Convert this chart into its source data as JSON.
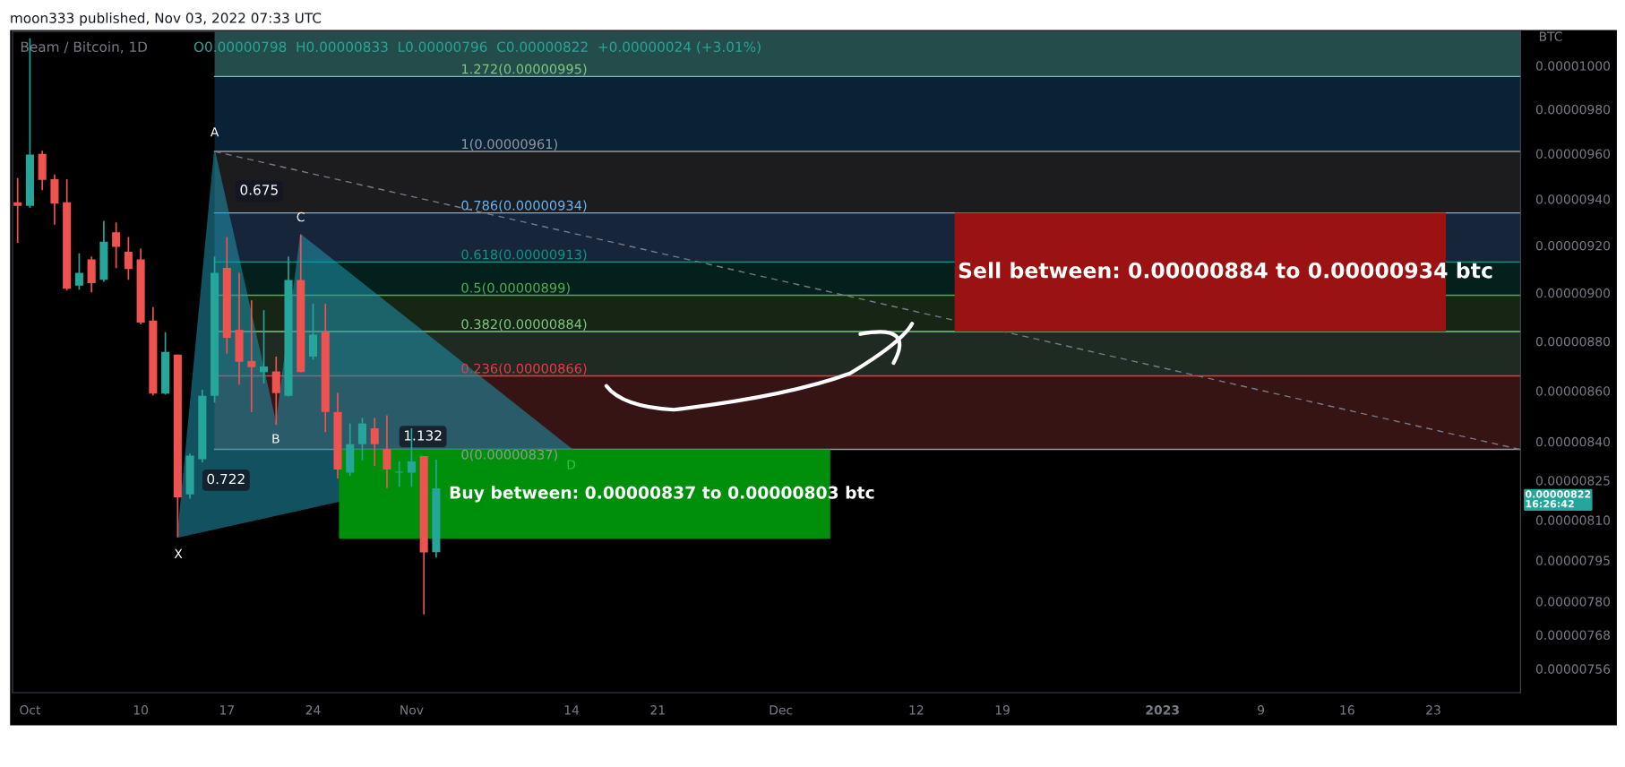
{
  "chart_data": {
    "type": "candlestick",
    "title": "Beam / Bitcoin, 1D",
    "subtitle": "O0.00000798  H0.00000833  L0.00000796  C0.00000822  +0.00000024 (+3.01%)",
    "ylabel": "BTC",
    "x": [
      "2022-09-30",
      "2022-10-01",
      "2022-10-02",
      "2022-10-03",
      "2022-10-04",
      "2022-10-05",
      "2022-10-06",
      "2022-10-07",
      "2022-10-08",
      "2022-10-09",
      "2022-10-10",
      "2022-10-11",
      "2022-10-12",
      "2022-10-13",
      "2022-10-14",
      "2022-10-15",
      "2022-10-16",
      "2022-10-17",
      "2022-10-18",
      "2022-10-19",
      "2022-10-20",
      "2022-10-21",
      "2022-10-22",
      "2022-10-23",
      "2022-10-24",
      "2022-10-25",
      "2022-10-26",
      "2022-10-27",
      "2022-10-28",
      "2022-10-29",
      "2022-10-30",
      "2022-10-31",
      "2022-11-01",
      "2022-11-02",
      "2022-11-03"
    ],
    "ohlc": [
      [
        9.386e-06,
        9.492e-06,
        9.211e-06,
        9.371e-06
      ],
      [
        9.371e-06,
        1.0128e-05,
        9.362e-06,
        9.596e-06
      ],
      [
        9.599e-06,
        9.613e-06,
        9.439e-06,
        9.484e-06
      ],
      [
        9.487e-06,
        9.508e-06,
        9.289e-06,
        9.38e-06
      ],
      [
        9.386e-06,
        9.487e-06,
        9.01e-06,
        9.017e-06
      ],
      [
        9.03e-06,
        9.166e-06,
        9.013e-06,
        9.084e-06
      ],
      [
        9.141e-06,
        9.153e-06,
        9.002e-06,
        9.041e-06
      ],
      [
        9.055e-06,
        9.306e-06,
        9.046e-06,
        9.216e-06
      ],
      [
        9.256e-06,
        9.299e-06,
        9.104e-06,
        9.194e-06
      ],
      [
        9.173e-06,
        9.236e-06,
        9.055e-06,
        9.1e-06
      ],
      [
        9.141e-06,
        9.186e-06,
        8.869e-06,
        8.877e-06
      ],
      [
        8.885e-06,
        8.941e-06,
        8.582e-06,
        8.589e-06
      ],
      [
        8.589e-06,
        8.837e-06,
        8.585e-06,
        8.757e-06
      ],
      [
        8.746e-06,
        8.746e-06,
        8.036e-06,
        8.186e-06
      ],
      [
        8.197e-06,
        8.353e-06,
        8.181e-06,
        8.346e-06
      ],
      [
        8.332e-06,
        8.604e-06,
        8.32e-06,
        8.58e-06
      ],
      [
        8.58e-06,
        9.153e-06,
        8.554e-06,
        9.084e-06
      ],
      [
        9.105e-06,
        9.236e-06,
        8.75e-06,
        8.814e-06
      ],
      [
        8.847e-06,
        9.084e-06,
        8.625e-06,
        8.717e-06
      ],
      [
        8.72e-06,
        8.969e-06,
        8.516e-06,
        8.695e-06
      ],
      [
        8.675e-06,
        8.928e-06,
        8.629e-06,
        8.698e-06
      ],
      [
        8.678e-06,
        8.738e-06,
        8.465e-06,
        8.591e-06
      ],
      [
        8.58e-06,
        9.153e-06,
        8.578e-06,
        9.054e-06
      ],
      [
        9.054e-06,
        9.246e-06,
        8.675e-06,
        8.675e-06
      ],
      [
        8.738e-06,
        8.955e-06,
        8.725e-06,
        8.827e-06
      ],
      [
        8.838e-06,
        8.955e-06,
        8.437e-06,
        8.516e-06
      ],
      [
        8.516e-06,
        8.593e-06,
        8.258e-06,
        8.292e-06
      ],
      [
        8.28e-06,
        8.471e-06,
        8.268e-06,
        8.39e-06
      ],
      [
        8.39e-06,
        8.493e-06,
        8.327e-06,
        8.471e-06
      ],
      [
        8.452e-06,
        8.493e-06,
        8.305e-06,
        8.39e-06
      ],
      [
        8.372e-06,
        8.503e-06,
        8.221e-06,
        8.292e-06
      ],
      [
        8.28e-06,
        8.323e-06,
        8.226e-06,
        8.284e-06
      ],
      [
        8.28e-06,
        8.452e-06,
        8.226e-06,
        8.323e-06
      ],
      [
        8.344e-06,
        8.344e-06,
        7.753e-06,
        7.979e-06
      ],
      [
        7.98e-06,
        8.33e-06,
        7.96e-06,
        8.22e-06
      ]
    ],
    "colors": [
      "#ef5350",
      "#26a69a",
      "#ef5350",
      "#ef5350",
      "#ef5350",
      "#26a69a",
      "#ef5350",
      "#26a69a",
      "#ef5350",
      "#ef5350",
      "#ef5350",
      "#ef5350",
      "#26a69a",
      "#ef5350",
      "#26a69a",
      "#26a69a",
      "#26a69a",
      "#ef5350",
      "#ef5350",
      "#ef5350",
      "#26a69a",
      "#ef5350",
      "#26a69a",
      "#ef5350",
      "#26a69a",
      "#ef5350",
      "#ef5350",
      "#26a69a",
      "#26a69a",
      "#ef5350",
      "#ef5350",
      "#26a69a",
      "#26a69a",
      "#ef5350",
      "#26a69a"
    ],
    "series": [
      {
        "type": "area",
        "color": "#2196b0",
        "x": [
          "2022-10-13",
          "2022-10-16",
          "2022-10-21",
          "2022-10-23",
          "2022-11-14"
        ],
        "values": [
          8.036e-06,
          9.61e-06,
          8.465e-06,
          9.246e-06,
          8.37e-06
        ]
      },
      {
        "type": "line",
        "color": "#787b86",
        "line_style": "dashed",
        "x": [
          "2022-10-16",
          "2023-01-30"
        ],
        "values": [
          9.61e-06,
          8.37e-06
        ]
      }
    ],
    "ref_lines": [
      {
        "axis": "y",
        "value": 9.95e-06,
        "label": "1.272(0.00000995)",
        "color": "#81c784"
      },
      {
        "axis": "y",
        "value": 9.61e-06,
        "label": "1(0.00000961)",
        "color": "#9598a1"
      },
      {
        "axis": "y",
        "value": 9.34e-06,
        "label": "0.786(0.00000934)",
        "color": "#64b5f6"
      },
      {
        "axis": "y",
        "value": 9.13e-06,
        "label": "0.618(0.00000913)",
        "color": "#089981"
      },
      {
        "axis": "y",
        "value": 8.99e-06,
        "label": "0.5(0.00000899)",
        "color": "#4caf50"
      },
      {
        "axis": "y",
        "value": 8.84e-06,
        "label": "0.382(0.00000884)",
        "color": "#81c784"
      },
      {
        "axis": "y",
        "value": 8.66e-06,
        "label": "0.236(0.00000866)",
        "color": "#f23645"
      },
      {
        "axis": "y",
        "value": 8.37e-06,
        "label": "0(0.00000837)",
        "color": "#9598a1"
      }
    ],
    "bands": [
      {
        "axis": "y",
        "from": 9.95e-06,
        "to": 1.016e-05,
        "color": "#244c4a"
      },
      {
        "axis": "y",
        "from": 9.61e-06,
        "to": 9.95e-06,
        "color": "#0a2236"
      },
      {
        "axis": "y",
        "from": 9.34e-06,
        "to": 9.61e-06,
        "color": "#1c1c1e"
      },
      {
        "axis": "y",
        "from": 9.13e-06,
        "to": 9.34e-06,
        "color": "#16253a"
      },
      {
        "axis": "y",
        "from": 8.99e-06,
        "to": 9.13e-06,
        "color": "#03201c"
      },
      {
        "axis": "y",
        "from": 8.84e-06,
        "to": 8.99e-06,
        "color": "#162514"
      },
      {
        "axis": "y",
        "from": 8.66e-06,
        "to": 8.84e-06,
        "color": "#1e2a22"
      },
      {
        "axis": "y",
        "from": 8.37e-06,
        "to": 8.66e-06,
        "color": "#361414"
      },
      {
        "axis": "y",
        "from": 8.84e-06,
        "to": 9.34e-06,
        "color": "#9a1212",
        "label": "Sell between: 0.00000884 to 0.00000934 btc"
      },
      {
        "axis": "y",
        "from": 8.03e-06,
        "to": 8.37e-06,
        "color": "#008f0a",
        "label": "Buy between: 0.00000837 to 0.00000803 btc"
      }
    ],
    "annotations": [
      "moon333 published, Nov 03, 2022 07:33 UTC",
      "X",
      "A",
      "B",
      "C",
      "D",
      "0.722",
      "0.675",
      "1.132",
      "0.00000822\n16:26:42"
    ],
    "log": "y",
    "ylim": [
      7.477e-06,
      1.016e-05
    ],
    "yticks": [
      {
        "value": 1e-05,
        "label": "0.00001000"
      },
      {
        "value": 9.8e-06,
        "label": "0.00000980"
      },
      {
        "value": 9.6e-06,
        "label": "0.00000960"
      },
      {
        "value": 9.4e-06,
        "label": "0.00000940"
      },
      {
        "value": 9.2e-06,
        "label": "0.00000920"
      },
      {
        "value": 9e-06,
        "label": "0.00000900"
      },
      {
        "value": 8.8e-06,
        "label": "0.00000880"
      },
      {
        "value": 8.6e-06,
        "label": "0.00000860"
      },
      {
        "value": 8.4e-06,
        "label": "0.00000840"
      },
      {
        "value": 8.25e-06,
        "label": "0.00000825"
      },
      {
        "value": 8.1e-06,
        "label": "0.00000810"
      },
      {
        "value": 7.95e-06,
        "label": "0.00000795"
      },
      {
        "value": 7.8e-06,
        "label": "0.00000780"
      },
      {
        "value": 7.68e-06,
        "label": "0.00000768"
      },
      {
        "value": 7.56e-06,
        "label": "0.00000756"
      }
    ],
    "xlim": [
      "2022-09-29T14:00",
      "2023-01-30T02:00"
    ],
    "xticks": [
      {
        "value": "2022-10-01",
        "label": "Oct"
      },
      {
        "value": "2022-10-10",
        "label": "10"
      },
      {
        "value": "2022-10-17",
        "label": "17"
      },
      {
        "value": "2022-10-24",
        "label": "24"
      },
      {
        "value": "2022-11-01",
        "label": "Nov"
      },
      {
        "value": "2022-11-14",
        "label": "14"
      },
      {
        "value": "2022-11-21",
        "label": "21"
      },
      {
        "value": "2022-12-01",
        "label": "Dec"
      },
      {
        "value": "2022-12-12",
        "label": "12"
      },
      {
        "value": "2022-12-19",
        "label": "19"
      },
      {
        "value": "2023-01-01",
        "label": "2023"
      },
      {
        "value": "2023-01-09",
        "label": "9"
      },
      {
        "value": "2023-01-16",
        "label": "16"
      },
      {
        "value": "2023-01-23",
        "label": "23"
      }
    ],
    "grid": false,
    "legend": false
  }
}
